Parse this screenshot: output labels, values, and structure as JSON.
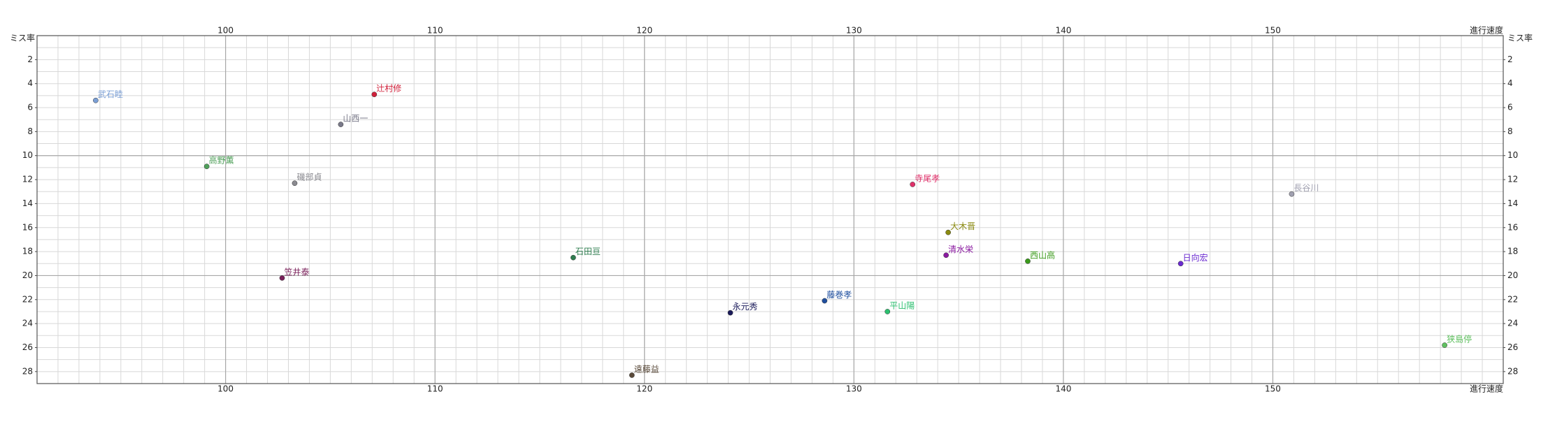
{
  "chart_data": {
    "type": "scatter",
    "y_label": "ミス率",
    "x_label": "進行速度",
    "xlim": [
      91,
      161
    ],
    "ylim": [
      0,
      29
    ],
    "y_inverted": true,
    "xticks": [
      100,
      110,
      120,
      130,
      140,
      150
    ],
    "yticks": [
      2,
      4,
      6,
      8,
      10,
      12,
      14,
      16,
      18,
      20,
      22,
      24,
      26,
      28
    ],
    "xminor": 1,
    "yminor": 1,
    "grid": true,
    "series": [
      {
        "name": "武石睦",
        "color": "#7a9fd6",
        "x": [
          93.8
        ],
        "values": [
          5.4
        ]
      },
      {
        "name": "辻村修",
        "color": "#d0203a",
        "x": [
          107.1
        ],
        "values": [
          4.9
        ]
      },
      {
        "name": "山西一",
        "color": "#7a7a8a",
        "x": [
          105.5
        ],
        "values": [
          7.4
        ]
      },
      {
        "name": "高野薫",
        "color": "#4fa05a",
        "x": [
          99.1
        ],
        "values": [
          10.9
        ]
      },
      {
        "name": "磯部貞",
        "color": "#8a8a90",
        "x": [
          103.3
        ],
        "values": [
          12.3
        ]
      },
      {
        "name": "笠井泰",
        "color": "#7a1f5a",
        "x": [
          102.7
        ],
        "values": [
          20.2
        ]
      },
      {
        "name": "石田亘",
        "color": "#2e7d4f",
        "x": [
          116.6
        ],
        "values": [
          18.5
        ]
      },
      {
        "name": "遠藤益",
        "color": "#5a4a3a",
        "x": [
          119.4
        ],
        "values": [
          28.3
        ]
      },
      {
        "name": "永元秀",
        "color": "#1a1a5a",
        "x": [
          124.1
        ],
        "values": [
          23.1
        ]
      },
      {
        "name": "藤巻孝",
        "color": "#1f4f9f",
        "x": [
          128.6
        ],
        "values": [
          22.1
        ]
      },
      {
        "name": "平山陽",
        "color": "#2cbf6f",
        "x": [
          131.6
        ],
        "values": [
          23.0
        ]
      },
      {
        "name": "寺尾孝",
        "color": "#e0306a",
        "x": [
          132.8
        ],
        "values": [
          12.4
        ]
      },
      {
        "name": "大木晋",
        "color": "#8a8a10",
        "x": [
          134.5
        ],
        "values": [
          16.4
        ]
      },
      {
        "name": "清水栄",
        "color": "#8a1aa0",
        "x": [
          134.4
        ],
        "values": [
          18.3
        ]
      },
      {
        "name": "西山高",
        "color": "#3a9a1a",
        "x": [
          138.3
        ],
        "values": [
          18.8
        ]
      },
      {
        "name": "日向宏",
        "color": "#6a2ad0",
        "x": [
          145.6
        ],
        "values": [
          19.0
        ]
      },
      {
        "name": "長谷川",
        "color": "#a0a0b0",
        "x": [
          150.9
        ],
        "values": [
          13.2
        ]
      },
      {
        "name": "狭島停",
        "color": "#60c060",
        "x": [
          158.2
        ],
        "values": [
          25.8
        ]
      }
    ]
  }
}
